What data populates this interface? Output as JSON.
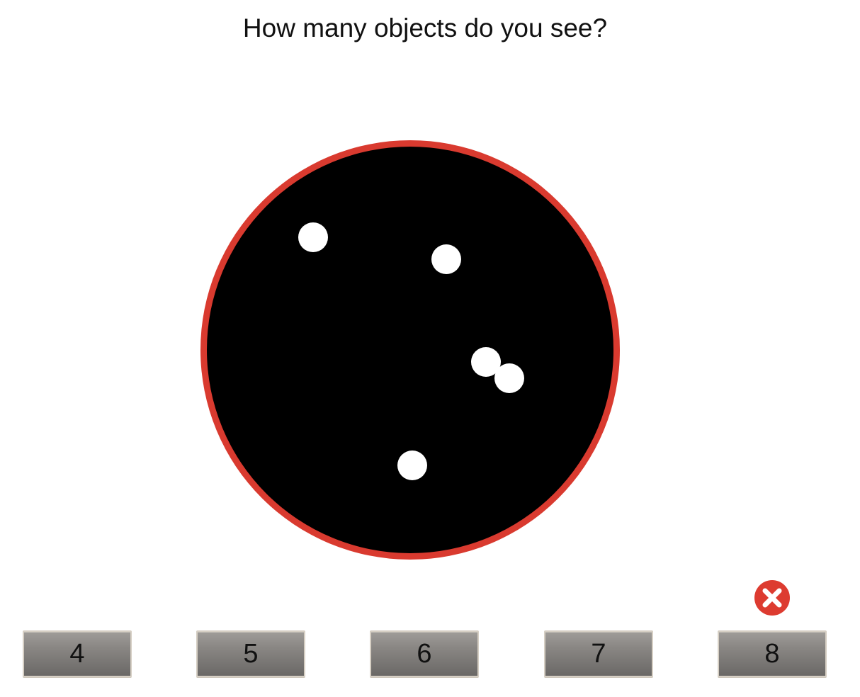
{
  "question": "How many objects do you see?",
  "colors": {
    "ring": "#d93a2f",
    "field": "#000000",
    "dot": "#ffffff",
    "wrong_mark": "#dd3b30"
  },
  "answers": [
    {
      "label": "4"
    },
    {
      "label": "5"
    },
    {
      "label": "6"
    },
    {
      "label": "7"
    },
    {
      "label": "8"
    }
  ],
  "wrong_mark_icon": "x-circle-icon"
}
